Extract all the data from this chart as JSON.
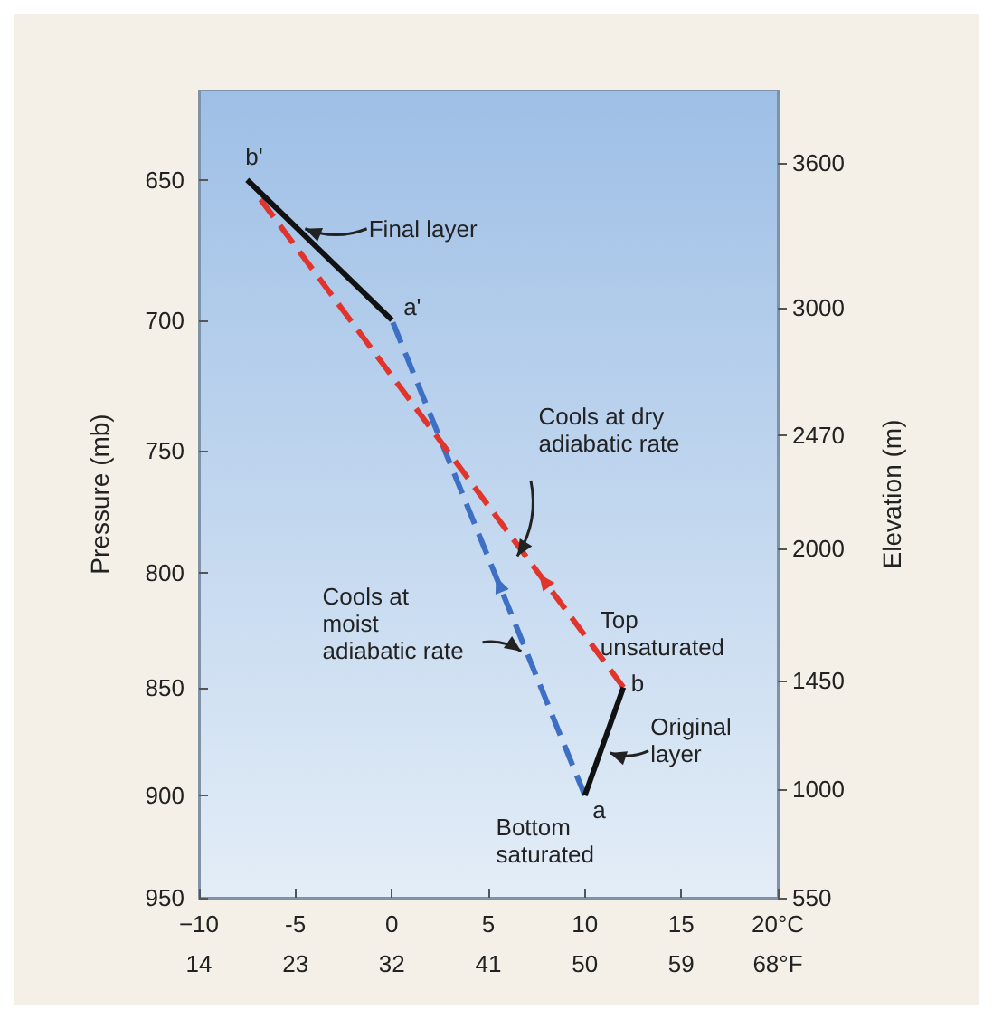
{
  "chart_data": {
    "type": "line",
    "ylabel": "Pressure (mb)",
    "y2label": "Elevation (m)",
    "log": "y",
    "marker": "none",
    "xlim": [
      -10,
      20
    ],
    "xticks": [
      {
        "value": -10,
        "label": "−10"
      },
      -5,
      0,
      5,
      10,
      15,
      {
        "value": 20,
        "label": "20°C"
      }
    ],
    "x2lim": [
      14,
      68
    ],
    "x2ticks": [
      14,
      23,
      32,
      41,
      50,
      59,
      {
        "value": 68,
        "label": "68°F"
      }
    ],
    "ylim": [
      950,
      620
    ],
    "yticks": [
      650,
      700,
      750,
      800,
      850,
      900,
      950
    ],
    "y2lim": [
      550,
      3900
    ],
    "y2ticks": [
      550,
      1000,
      1450,
      2000,
      2470,
      3000,
      3600
    ],
    "series": [
      {
        "color": "#3d6fc4",
        "line_style": "dashed",
        "x": [
          10,
          0
        ],
        "values": [
          900,
          700
        ]
      },
      {
        "color": "#e0342c",
        "line_style": "dashed",
        "x": [
          12,
          -7
        ],
        "values": [
          850,
          655
        ]
      },
      {
        "color": "#111111",
        "line_style": "solid",
        "x": [
          -7.5,
          0
        ],
        "values": [
          650,
          700
        ]
      },
      {
        "color": "#111111",
        "line_style": "solid",
        "x": [
          10,
          12
        ],
        "values": [
          900,
          850
        ]
      }
    ],
    "annotations": [
      "b'",
      "a'",
      "a",
      "b",
      {
        "text": "Final layer",
        "x": -4.5,
        "y": 667
      },
      {
        "text": "Cools at dry adiabatic rate",
        "x": 6.5,
        "y": 793
      },
      {
        "text": "Cools at moist adiabatic rate",
        "x": 6.7,
        "y": 834
      },
      "Top unsaturated",
      {
        "text": "Original layer",
        "x": 11.3,
        "y": 880
      },
      "Bottom saturated"
    ]
  }
}
